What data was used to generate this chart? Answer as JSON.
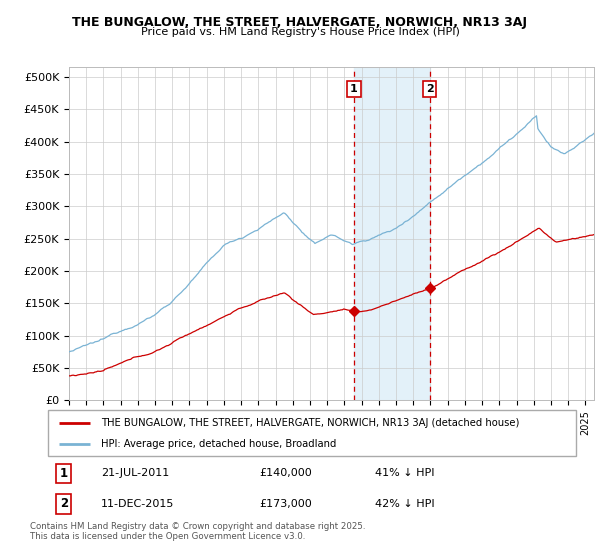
{
  "title1": "THE BUNGALOW, THE STREET, HALVERGATE, NORWICH, NR13 3AJ",
  "title2": "Price paid vs. HM Land Registry's House Price Index (HPI)",
  "ylabel_ticks": [
    "£0",
    "£50K",
    "£100K",
    "£150K",
    "£200K",
    "£250K",
    "£300K",
    "£350K",
    "£400K",
    "£450K",
    "£500K"
  ],
  "ytick_values": [
    0,
    50000,
    100000,
    150000,
    200000,
    250000,
    300000,
    350000,
    400000,
    450000,
    500000
  ],
  "ylim": [
    0,
    515000
  ],
  "xlim_start": 1995.0,
  "xlim_end": 2025.5,
  "hpi_color": "#7ab3d4",
  "price_color": "#cc0000",
  "marker1_date": 2011.55,
  "marker1_price": 140000,
  "marker1_hpi_pct": "41% ↓ HPI",
  "marker1_date_str": "21-JUL-2011",
  "marker2_date": 2015.95,
  "marker2_price": 173000,
  "marker2_hpi_pct": "42% ↓ HPI",
  "marker2_date_str": "11-DEC-2015",
  "legend_line1": "THE BUNGALOW, THE STREET, HALVERGATE, NORWICH, NR13 3AJ (detached house)",
  "legend_line2": "HPI: Average price, detached house, Broadland",
  "footnote": "Contains HM Land Registry data © Crown copyright and database right 2025.\nThis data is licensed under the Open Government Licence v3.0.",
  "bg_highlight_start": 2011.55,
  "bg_highlight_end": 2015.95
}
